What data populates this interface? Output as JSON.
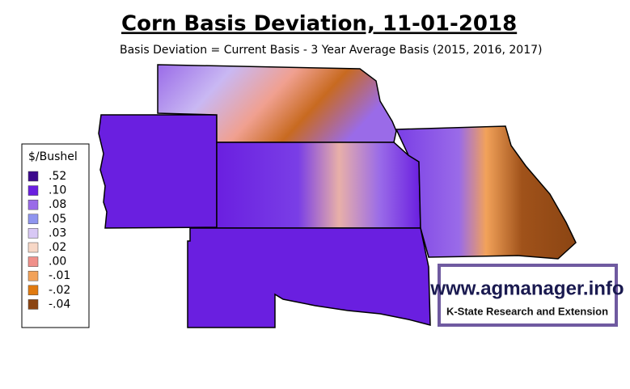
{
  "title": "Corn Basis Deviation, 11-01-2018",
  "subtitle": "Basis Deviation = Current Basis - 3 Year Average Basis (2015, 2016, 2017)",
  "legend": {
    "title": "$/Bushel",
    "items": [
      {
        "label": ".52",
        "color": "#3d0a8c"
      },
      {
        "label": ".10",
        "color": "#6a1fe0"
      },
      {
        "label": ".08",
        "color": "#9a6be8"
      },
      {
        "label": ".05",
        "color": "#8f95ef"
      },
      {
        "label": ".03",
        "color": "#d8c8f5"
      },
      {
        "label": ".02",
        "color": "#f7d7c6"
      },
      {
        "label": ".00",
        "color": "#f0908a"
      },
      {
        "label": "-.01",
        "color": "#f2a25a"
      },
      {
        "label": "-.02",
        "color": "#e07a10"
      },
      {
        "label": "-.04",
        "color": "#8b4513"
      }
    ]
  },
  "logo": {
    "url": "www.agmanager.info",
    "org": "K-State Research and Extension"
  }
}
